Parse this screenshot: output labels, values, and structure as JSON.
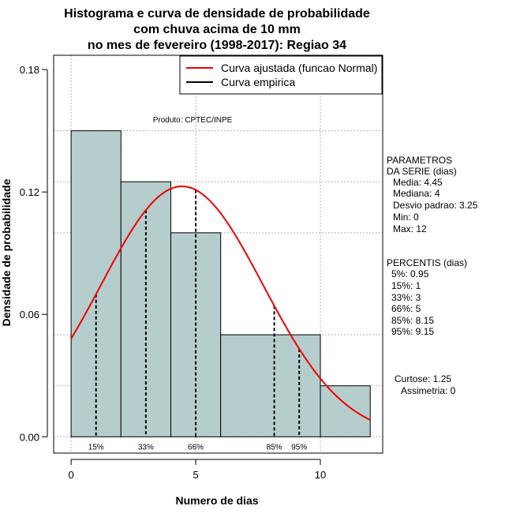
{
  "chart_data": {
    "type": "bar",
    "title": [
      "Histograma e curva de densidade de probabilidade",
      "com chuva acima de 10 mm",
      "no mes de fevereiro (1998-2017): Regiao 34"
    ],
    "xlabel": "Numero de dias",
    "ylabel": "Densidade de probabilidade",
    "xlim": [
      -0.7,
      12.5
    ],
    "ylim": [
      -0.008,
      0.187
    ],
    "x_ticks": [
      0,
      5,
      10
    ],
    "y_ticks": [
      "0.00",
      "0.06",
      "0.12",
      "0.18"
    ],
    "y_tick_values": [
      0,
      0.06,
      0.12,
      0.18
    ],
    "grid": true,
    "bar_color": "#b5cdcd",
    "curve_color": "#ee0000",
    "bins": [
      {
        "start": 0,
        "end": 2,
        "density": 0.15
      },
      {
        "start": 2,
        "end": 4,
        "density": 0.125
      },
      {
        "start": 4,
        "end": 6,
        "density": 0.1
      },
      {
        "start": 6,
        "end": 10,
        "density": 0.05
      },
      {
        "start": 10,
        "end": 12,
        "density": 0.025
      }
    ],
    "normal_curve": {
      "mean": 4.45,
      "sd": 3.25,
      "x_from": 0,
      "x_to": 12
    },
    "percentile_lines": [
      {
        "label": "15%",
        "x": 1
      },
      {
        "label": "33%",
        "x": 3
      },
      {
        "label": "66%",
        "x": 5
      },
      {
        "label": "85%",
        "x": 8.15
      },
      {
        "label": "95%",
        "x": 9.15
      }
    ],
    "legend": {
      "placement": "top-right",
      "entries": [
        {
          "label": "Curva ajustada (funcao Normal)",
          "color": "#ee0000"
        },
        {
          "label": "Curva empirica",
          "color": "#000000"
        }
      ]
    },
    "annotation": "Produto: CPTEC/INPE",
    "parametros": {
      "heading": [
        "PARAMETROS",
        "DA SERIE (dias)"
      ],
      "lines": [
        "Media: 4.45",
        "Mediana: 4",
        "Desvio padrao: 3.25",
        "Min: 0",
        "Max: 12"
      ]
    },
    "percentis": {
      "heading": "PERCENTIS (dias)",
      "lines": [
        "5%: 0.95",
        "15%: 1",
        "33%: 3",
        "66%: 5",
        "85%: 8.15",
        "95%: 9.15"
      ]
    },
    "curtose": "Curtose: 1.25",
    "assimetria": "Assimetria: 0"
  }
}
